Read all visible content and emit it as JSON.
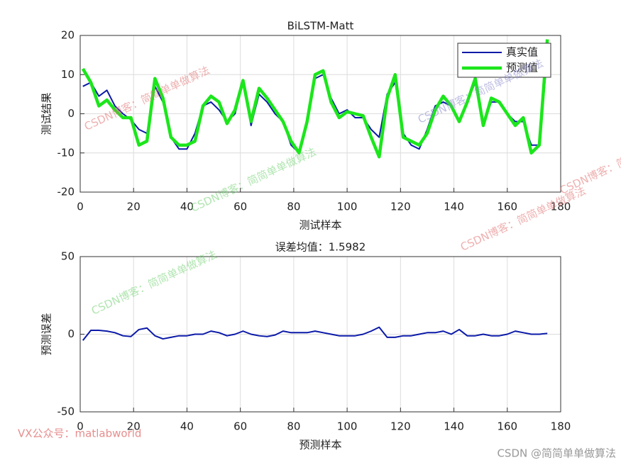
{
  "chart_data": [
    {
      "type": "line",
      "title": "BiLSTM-Matt",
      "xlabel": "测试样本",
      "ylabel": "测试结果",
      "x": [
        1,
        4,
        7,
        10,
        13,
        16,
        19,
        22,
        25,
        28,
        31,
        34,
        37,
        40,
        43,
        46,
        49,
        52,
        55,
        58,
        61,
        64,
        67,
        70,
        73,
        76,
        79,
        82,
        85,
        88,
        91,
        94,
        97,
        100,
        103,
        106,
        109,
        112,
        115,
        118,
        121,
        124,
        127,
        130,
        133,
        136,
        139,
        142,
        145,
        148,
        151,
        154,
        157,
        160,
        163,
        166,
        169,
        172,
        175
      ],
      "series": [
        {
          "name": "真实值",
          "color": "#0b1aa8",
          "width": 2,
          "values": [
            7,
            8,
            4.5,
            6,
            2,
            0,
            -1.5,
            -4,
            -5,
            7,
            3,
            -6,
            -9,
            -9,
            -5,
            2,
            3,
            1,
            -2,
            0,
            8,
            -3,
            5,
            3,
            0,
            -2,
            -8,
            -10,
            -2,
            9,
            10,
            4,
            0,
            1,
            -1,
            -1,
            -4,
            -6,
            5,
            8,
            -5,
            -8,
            -9,
            -4,
            2,
            3,
            2,
            -2,
            3,
            8,
            -3,
            3,
            3,
            0,
            -2,
            -2,
            -8,
            -8,
            15
          ]
        },
        {
          "name": "预测值",
          "color": "#1be61b",
          "width": 4.5,
          "values": [
            11.5,
            8,
            2,
            3.5,
            1,
            -1,
            -1,
            -8,
            -7,
            9,
            4,
            -6,
            -8,
            -8,
            -7,
            2,
            4.5,
            3,
            -2.5,
            1,
            8.5,
            -2,
            6.5,
            4,
            1,
            -2,
            -7,
            -10,
            -2,
            10,
            11,
            3,
            -1,
            0.5,
            0,
            -0.5,
            -6,
            -11,
            4,
            10,
            -6,
            -7,
            -8,
            -5,
            1,
            4.5,
            2,
            -2,
            3,
            9,
            -3,
            4,
            3,
            0,
            -3,
            -1,
            -10,
            -8,
            19
          ]
        }
      ],
      "xlim": [
        0,
        180
      ],
      "xticks": [
        0,
        20,
        40,
        60,
        80,
        100,
        120,
        140,
        160,
        180
      ],
      "ylim": [
        -20,
        20
      ],
      "yticks": [
        -20,
        -10,
        0,
        10,
        20
      ],
      "grid": true,
      "legend": "northeast"
    },
    {
      "type": "line",
      "title": "误差均值：1.5982",
      "xlabel": "预测样本",
      "ylabel": "预测误差",
      "x": [
        1,
        4,
        7,
        10,
        13,
        16,
        19,
        22,
        25,
        28,
        31,
        34,
        37,
        40,
        43,
        46,
        49,
        52,
        55,
        58,
        61,
        64,
        67,
        70,
        73,
        76,
        79,
        82,
        85,
        88,
        91,
        94,
        97,
        100,
        103,
        106,
        109,
        112,
        115,
        118,
        121,
        124,
        127,
        130,
        133,
        136,
        139,
        142,
        145,
        148,
        151,
        154,
        157,
        160,
        163,
        166,
        169,
        172,
        175
      ],
      "series": [
        {
          "color": "#0b1aa8",
          "width": 2,
          "values": [
            -4,
            2.5,
            2.5,
            2,
            1,
            -1,
            -1.5,
            3,
            4,
            -1,
            -3,
            -2,
            -1,
            -1,
            0,
            0,
            2,
            1,
            -1,
            0,
            2,
            0,
            -1,
            -1.5,
            -0.5,
            2,
            1,
            1,
            1,
            2,
            1,
            0,
            -1,
            -1,
            -1,
            0,
            2,
            4.5,
            -2,
            -2,
            -1,
            -1,
            0,
            1,
            1,
            2,
            0,
            3,
            -1,
            -1,
            0,
            -1,
            -1,
            0,
            2,
            1,
            0,
            0,
            0.5
          ]
        }
      ],
      "xlim": [
        0,
        180
      ],
      "xticks": [
        0,
        20,
        40,
        60,
        80,
        100,
        120,
        140,
        160,
        180
      ],
      "ylim": [
        -50,
        50
      ],
      "yticks": [
        -50,
        0,
        50
      ],
      "grid": true
    }
  ],
  "watermarks": [
    "CSDN博客：简简单单做算法",
    "CSDN博客：简简单单做算法",
    "CSDN博客：简简单单做算法",
    "CSDN博客：简简单单做算法",
    "CSDN博客：简简单单做算法",
    "CSDN博客：简简单单做算法"
  ],
  "footer_left": "VX公众号：matlabworld",
  "footer_right": "CSDN @简简单单做算法"
}
